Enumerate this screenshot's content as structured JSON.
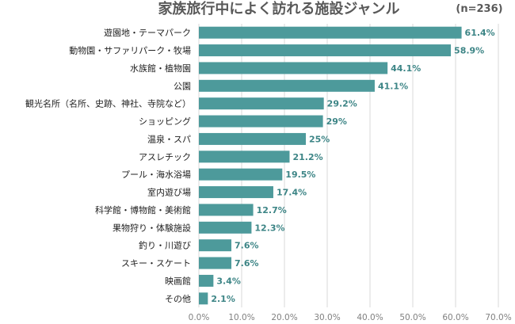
{
  "chart_data": {
    "type": "bar",
    "orientation": "horizontal",
    "title": "家族旅行中によく訪れる施設ジャンル",
    "sample_note": "(n=236)",
    "categories": [
      "遊園地・テーマパーク",
      "動物園・サファリパーク・牧場",
      "水族館・植物園",
      "公園",
      "観光名所（名所、史跡、神社、寺院など）",
      "ショッピング",
      "温泉・スパ",
      "アスレチック",
      "プール・海水浴場",
      "室内遊び場",
      "科学館・博物館・美術館",
      "果物狩り・体験施設",
      "釣り・川遊び",
      "スキー・スケート",
      "映画館",
      "その他"
    ],
    "values": [
      61.4,
      58.9,
      44.1,
      41.1,
      29.2,
      29,
      25,
      21.2,
      19.5,
      17.4,
      12.7,
      12.3,
      7.6,
      7.6,
      3.4,
      2.1
    ],
    "value_labels": [
      "61.4%",
      "58.9%",
      "44.1%",
      "41.1%",
      "29.2%",
      "29%",
      "25%",
      "21.2%",
      "19.5%",
      "17.4%",
      "12.7%",
      "12.3%",
      "7.6%",
      "7.6%",
      "3.4%",
      "2.1%"
    ],
    "xlim": [
      0,
      70
    ],
    "xticks": [
      0,
      10,
      20,
      30,
      40,
      50,
      60,
      70
    ],
    "xtick_labels": [
      "0.0%",
      "10.0%",
      "20.0%",
      "30.0%",
      "40.0%",
      "50.0%",
      "60.0%",
      "70.0%"
    ],
    "grid": true,
    "legend": "none",
    "colors": {
      "bar": "#4d9a9b",
      "value_label": "#3d8586",
      "grid": "#d9d9d9",
      "text": "#222222",
      "title": "#595959"
    }
  }
}
